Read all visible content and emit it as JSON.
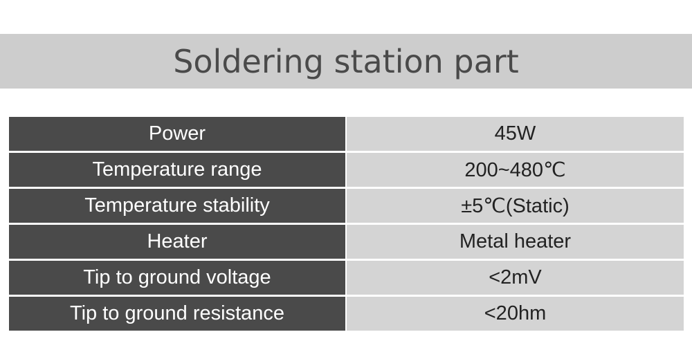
{
  "header": {
    "title": "Soldering station part"
  },
  "table": {
    "rows": [
      [
        "Power",
        "45W"
      ],
      [
        "Temperature range",
        "200~480℃"
      ],
      [
        "Temperature stability",
        "±5℃(Static)"
      ],
      [
        "Heater",
        "Metal heater"
      ],
      [
        "Tip to ground voltage",
        "<2mV"
      ],
      [
        "Tip to ground resistance",
        "<20hm"
      ]
    ]
  }
}
